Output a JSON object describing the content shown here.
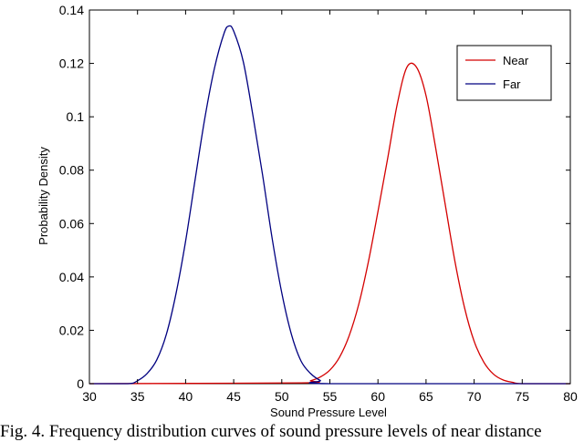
{
  "chart_data": {
    "type": "line",
    "title": "",
    "xlabel": "Sound Pressure Level",
    "ylabel": "Probability Density",
    "xlim": [
      30,
      80
    ],
    "ylim": [
      0,
      0.14
    ],
    "xticks": [
      "30",
      "35",
      "40",
      "45",
      "50",
      "55",
      "60",
      "65",
      "70",
      "75",
      "80"
    ],
    "yticks": [
      "0",
      "0.02",
      "0.04",
      "0.06",
      "0.08",
      "0.1",
      "0.12",
      "0.14"
    ],
    "grid": false,
    "legend_position": "top-right",
    "series": [
      {
        "name": "Near",
        "color": "#d40000",
        "x": [
          30,
          52,
          53,
          54,
          55,
          56,
          57,
          58,
          59,
          60,
          61,
          62,
          63,
          64,
          65,
          66,
          67,
          68,
          69,
          70,
          71,
          72,
          73,
          74,
          75,
          80
        ],
        "y": [
          0,
          0.0003,
          0.0011,
          0.0025,
          0.0051,
          0.0099,
          0.0179,
          0.0297,
          0.0456,
          0.0645,
          0.0842,
          0.1046,
          0.1185,
          0.1186,
          0.1079,
          0.0883,
          0.067,
          0.0459,
          0.0285,
          0.0159,
          0.0081,
          0.0036,
          0.0014,
          0.0005,
          0,
          0
        ]
      },
      {
        "name": "Far",
        "color": "#000080",
        "x": [
          30,
          34,
          35,
          36,
          37,
          38,
          39,
          40,
          41,
          42,
          43,
          44,
          44.5,
          45,
          46,
          47,
          48,
          49,
          50,
          51,
          52,
          53,
          54,
          55,
          80
        ],
        "y": [
          0,
          0,
          0.0011,
          0.0038,
          0.0089,
          0.0185,
          0.0337,
          0.0534,
          0.0767,
          0.0995,
          0.1182,
          0.1313,
          0.134,
          0.1321,
          0.1206,
          0.1005,
          0.0783,
          0.0544,
          0.034,
          0.0185,
          0.0085,
          0.0038,
          0.0012,
          0,
          0
        ]
      }
    ]
  },
  "caption": "Fig. 4. Frequency distribution curves of sound pressure levels of near distance"
}
